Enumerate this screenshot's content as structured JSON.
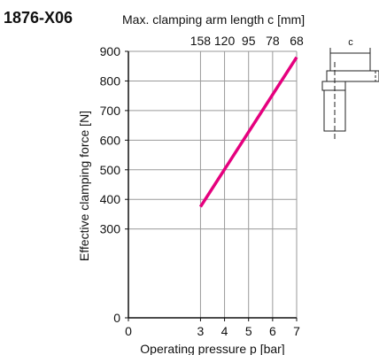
{
  "figure_id": "1876-X06",
  "top_axis": {
    "label": "Max. clamping arm length c [mm]",
    "ticks": [
      {
        "at_pressure": 3,
        "label": "158"
      },
      {
        "at_pressure": 4,
        "label": "120"
      },
      {
        "at_pressure": 5,
        "label": "95"
      },
      {
        "at_pressure": 6,
        "label": "78"
      },
      {
        "at_pressure": 7,
        "label": "68"
      }
    ]
  },
  "diagram": {
    "dimension_label": "c"
  },
  "colors": {
    "line": "#e5007e",
    "grid": "#9a9a9a",
    "axis": "#111111"
  },
  "chart_data": {
    "type": "line",
    "title": "",
    "xlabel": "Operating pressure p [bar]",
    "ylabel": "Effective clamping force [N]",
    "xlim": [
      0,
      7
    ],
    "ylim": [
      0,
      900
    ],
    "x_ticks": [
      0,
      3,
      4,
      5,
      6,
      7
    ],
    "y_ticks": [
      0,
      300,
      400,
      500,
      600,
      700,
      800,
      900
    ],
    "grid": true,
    "series": [
      {
        "x": [
          3,
          7
        ],
        "y": [
          375,
          880
        ]
      }
    ]
  }
}
